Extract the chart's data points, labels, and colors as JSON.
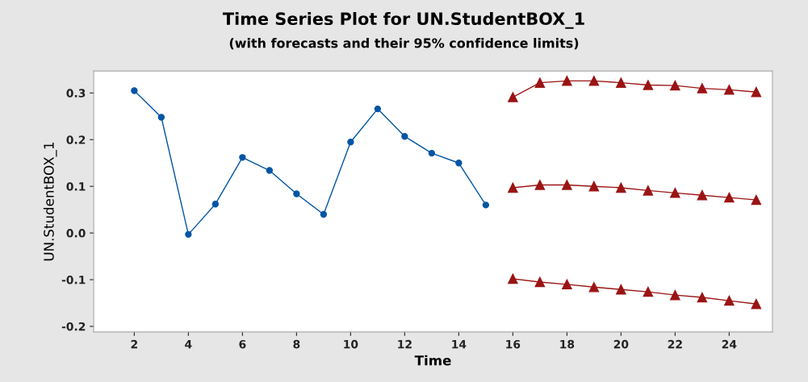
{
  "chart_data": {
    "type": "line",
    "title": "Time Series Plot for UN.StudentBOX_1",
    "subtitle": "(with forecasts and their 95% confidence limits)",
    "xlabel": "Time",
    "ylabel": "UN.StudentBOX_1",
    "x": [
      2,
      3,
      4,
      5,
      6,
      7,
      8,
      9,
      10,
      11,
      12,
      13,
      14,
      15
    ],
    "series": [
      {
        "color": "#0055a5",
        "marker": "circle",
        "values": [
          0.305,
          0.248,
          -0.003,
          0.062,
          0.162,
          0.134,
          0.084,
          0.04,
          0.195,
          0.266,
          0.207,
          0.171,
          0.15,
          0.06
        ]
      },
      {
        "color": "#9b1414",
        "marker": "triangle",
        "x": [
          16,
          17,
          18,
          19,
          20,
          21,
          22,
          23,
          24,
          25
        ],
        "values": [
          0.291,
          0.322,
          0.326,
          0.326,
          0.322,
          0.317,
          0.316,
          0.31,
          0.307,
          0.302
        ]
      },
      {
        "color": "#9b1414",
        "marker": "triangle",
        "x": [
          16,
          17,
          18,
          19,
          20,
          21,
          22,
          23,
          24,
          25
        ],
        "values": [
          0.097,
          0.103,
          0.103,
          0.1,
          0.097,
          0.091,
          0.086,
          0.081,
          0.076,
          0.071
        ]
      },
      {
        "color": "#9b1414",
        "marker": "triangle",
        "x": [
          16,
          17,
          18,
          19,
          20,
          21,
          22,
          23,
          24,
          25
        ],
        "values": [
          -0.098,
          -0.105,
          -0.11,
          -0.116,
          -0.121,
          -0.126,
          -0.133,
          -0.138,
          -0.145,
          -0.152
        ]
      }
    ],
    "xlim": [
      0.5,
      25.6
    ],
    "ylim": [
      -0.212,
      0.347
    ],
    "xticks": [
      2,
      4,
      6,
      8,
      10,
      12,
      14,
      16,
      18,
      20,
      22,
      24
    ],
    "yticks": [
      {
        "value": -0.2,
        "label": "-0.2"
      },
      {
        "value": -0.1,
        "label": "-0.1"
      },
      {
        "value": 0,
        "label": "0.0"
      },
      {
        "value": 0.1,
        "label": "0.1"
      },
      {
        "value": 0.2,
        "label": "0.2"
      },
      {
        "value": 0.3,
        "label": "0.3"
      }
    ],
    "grid": false,
    "legend": false,
    "line_style": "solid"
  }
}
